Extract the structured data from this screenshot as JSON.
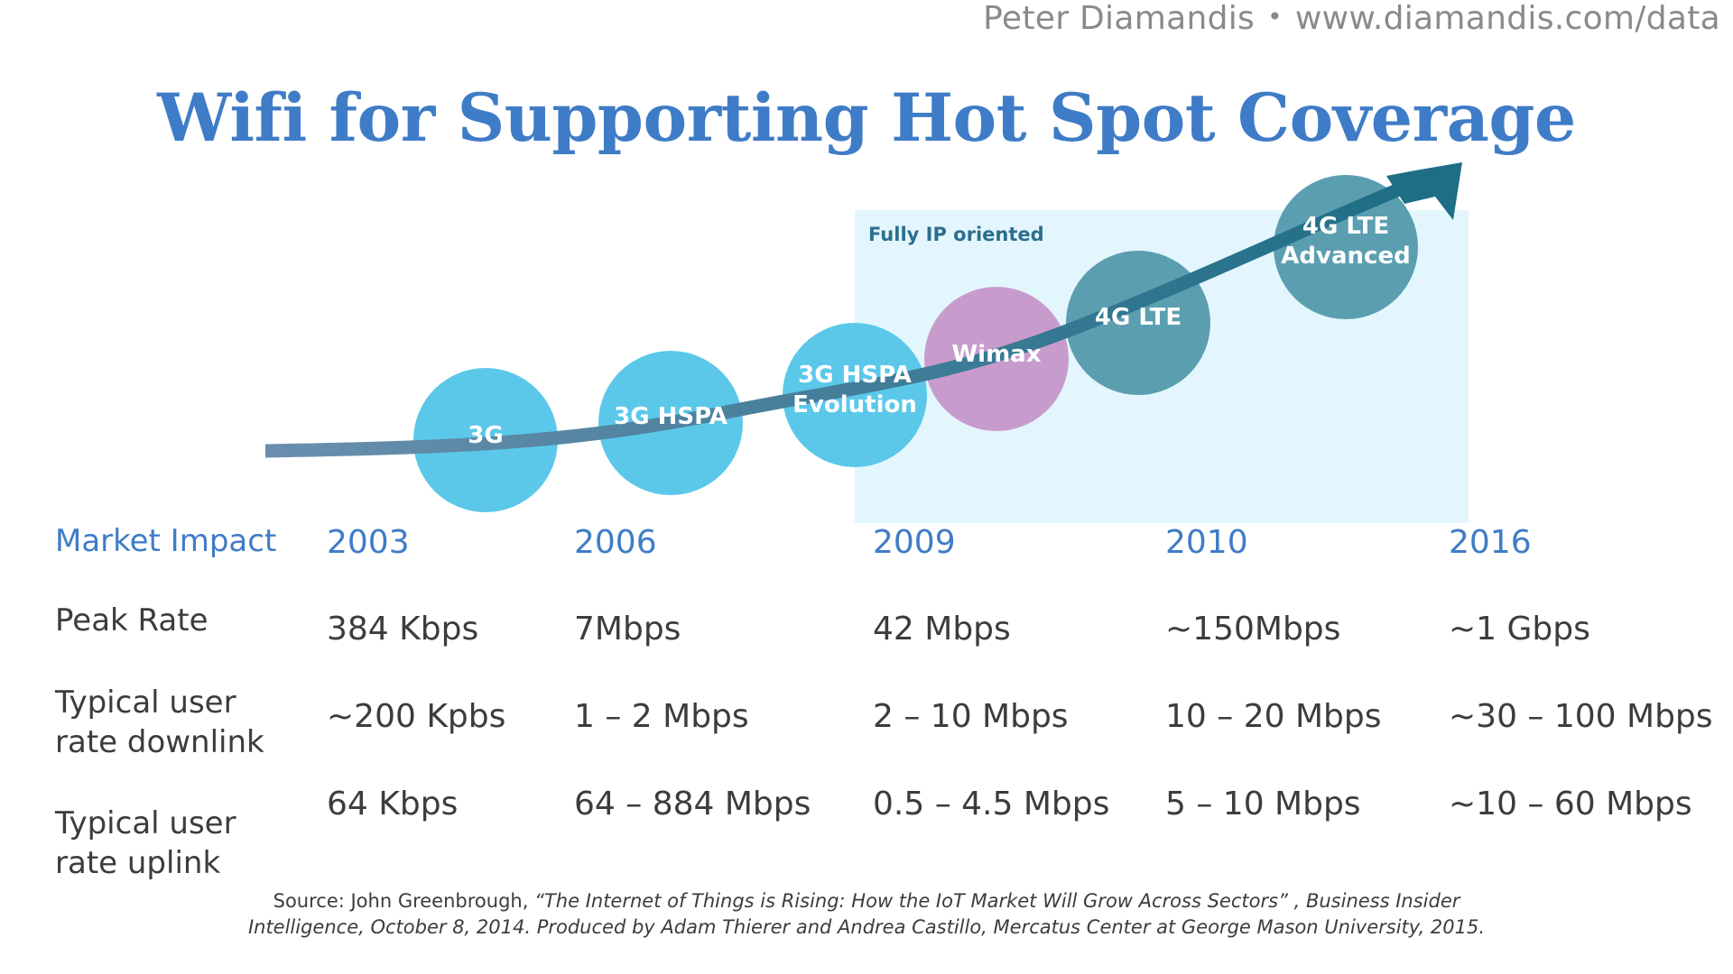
{
  "header": {
    "author": "Peter Diamandis",
    "separator": "•",
    "url": "www.diamandis.com/data"
  },
  "title": "Wifi for Supporting Hot Spot Coverage",
  "diagram": {
    "region_label": "Fully IP oriented",
    "technologies": [
      {
        "lines": [
          "3G"
        ],
        "color": "#5bc8ea"
      },
      {
        "lines": [
          "3G HSPA"
        ],
        "color": "#5bc8ea"
      },
      {
        "lines": [
          "3G HSPA",
          "Evolution"
        ],
        "color": "#5bc8ea"
      },
      {
        "lines": [
          "Wimax"
        ],
        "color": "#c79ccc"
      },
      {
        "lines": [
          "4G LTE"
        ],
        "color": "#5b9eb0"
      },
      {
        "lines": [
          "4G LTE",
          "Advanced"
        ],
        "color": "#5b9eb0"
      }
    ],
    "colors": {
      "arrow_start": "#6a8fae",
      "arrow_end": "#1e6e86",
      "ip_region": "#e4f6fd"
    }
  },
  "table": {
    "row_labels": {
      "market_impact": "Market Impact",
      "peak_rate": "Peak Rate",
      "downlink": "Typical user rate downlink",
      "uplink": "Typical user rate uplink"
    },
    "years": [
      "2003",
      "2006",
      "2009",
      "2010",
      "2016"
    ],
    "peak_rate": [
      "384 Kbps",
      "7Mbps",
      "42 Mbps",
      "~150Mbps",
      "~1 Gbps"
    ],
    "downlink": [
      "~200 Kpbs",
      "1 – 2 Mbps",
      "2 – 10 Mbps",
      "10 – 20 Mbps",
      "~30 – 100 Mbps"
    ],
    "uplink": [
      "64 Kbps",
      "64 – 884 Mbps",
      "0.5 – 4.5 Mbps",
      "5 – 10 Mbps",
      "~10 – 60 Mbps"
    ]
  },
  "source": {
    "prefix": "Source: John Greenbrough, ",
    "article": "“The Internet of Things is Rising: How the IoT Market Will Grow Across Sectors” , Business Insider Intelligence, October 8, 2014. Produced by  Adam Thierer and Andrea Castillo, Mercatus Center at George Mason University, 2015."
  }
}
